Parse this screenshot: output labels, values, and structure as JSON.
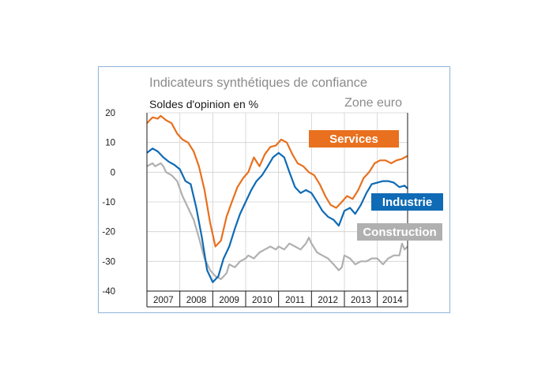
{
  "chart_data": {
    "type": "line",
    "title": "Indicateurs synthétiques de confiance",
    "subtitle": "Soldes d'opinion en %",
    "region": "Zone euro",
    "ylim": [
      -40,
      20
    ],
    "yticks": [
      "20",
      "10",
      "0",
      "-10",
      "-20",
      "-30",
      "-40"
    ],
    "xlim": [
      2007.0,
      2014.92
    ],
    "xticks": [
      "2007",
      "2008",
      "2009",
      "2010",
      "2011",
      "2012",
      "2013",
      "2014"
    ],
    "grid": true,
    "series": [
      {
        "name": "Services",
        "color": "#e8701e",
        "points": [
          [
            2007.0,
            16.5
          ],
          [
            2007.17,
            18.5
          ],
          [
            2007.33,
            18
          ],
          [
            2007.42,
            19
          ],
          [
            2007.58,
            17.5
          ],
          [
            2007.75,
            16.5
          ],
          [
            2007.92,
            13
          ],
          [
            2008.08,
            11
          ],
          [
            2008.25,
            10
          ],
          [
            2008.42,
            7
          ],
          [
            2008.58,
            2
          ],
          [
            2008.75,
            -6
          ],
          [
            2008.92,
            -17
          ],
          [
            2009.08,
            -25
          ],
          [
            2009.25,
            -23
          ],
          [
            2009.42,
            -15
          ],
          [
            2009.58,
            -10
          ],
          [
            2009.75,
            -5
          ],
          [
            2009.92,
            -2
          ],
          [
            2010.08,
            0
          ],
          [
            2010.25,
            5
          ],
          [
            2010.42,
            2
          ],
          [
            2010.58,
            6
          ],
          [
            2010.75,
            8.5
          ],
          [
            2010.92,
            9
          ],
          [
            2011.08,
            11
          ],
          [
            2011.25,
            10
          ],
          [
            2011.42,
            6
          ],
          [
            2011.58,
            3
          ],
          [
            2011.75,
            2
          ],
          [
            2011.92,
            0
          ],
          [
            2012.08,
            -1
          ],
          [
            2012.25,
            -4
          ],
          [
            2012.42,
            -8
          ],
          [
            2012.58,
            -11
          ],
          [
            2012.75,
            -12
          ],
          [
            2012.92,
            -10
          ],
          [
            2013.08,
            -8
          ],
          [
            2013.25,
            -9
          ],
          [
            2013.42,
            -6
          ],
          [
            2013.58,
            -2
          ],
          [
            2013.75,
            0
          ],
          [
            2013.92,
            3
          ],
          [
            2014.08,
            4
          ],
          [
            2014.25,
            4
          ],
          [
            2014.42,
            3
          ],
          [
            2014.58,
            4
          ],
          [
            2014.75,
            4.5
          ],
          [
            2014.92,
            5.5
          ]
        ]
      },
      {
        "name": "Industrie",
        "color": "#0f6bb5",
        "points": [
          [
            2007.0,
            6.5
          ],
          [
            2007.17,
            8
          ],
          [
            2007.33,
            7
          ],
          [
            2007.5,
            5
          ],
          [
            2007.67,
            3.5
          ],
          [
            2007.83,
            2.5
          ],
          [
            2008.0,
            1
          ],
          [
            2008.17,
            -3
          ],
          [
            2008.33,
            -4
          ],
          [
            2008.5,
            -12
          ],
          [
            2008.67,
            -22
          ],
          [
            2008.83,
            -33
          ],
          [
            2009.0,
            -37
          ],
          [
            2009.17,
            -35
          ],
          [
            2009.33,
            -29
          ],
          [
            2009.5,
            -25
          ],
          [
            2009.67,
            -19
          ],
          [
            2009.83,
            -14
          ],
          [
            2010.0,
            -10
          ],
          [
            2010.17,
            -6
          ],
          [
            2010.33,
            -3
          ],
          [
            2010.5,
            -1
          ],
          [
            2010.67,
            2
          ],
          [
            2010.83,
            5
          ],
          [
            2011.0,
            6.5
          ],
          [
            2011.17,
            5
          ],
          [
            2011.33,
            0
          ],
          [
            2011.5,
            -5
          ],
          [
            2011.67,
            -7
          ],
          [
            2011.83,
            -6
          ],
          [
            2012.0,
            -7
          ],
          [
            2012.17,
            -10
          ],
          [
            2012.33,
            -13
          ],
          [
            2012.5,
            -15
          ],
          [
            2012.67,
            -16
          ],
          [
            2012.83,
            -18
          ],
          [
            2013.0,
            -13
          ],
          [
            2013.17,
            -12
          ],
          [
            2013.33,
            -14
          ],
          [
            2013.5,
            -11
          ],
          [
            2013.67,
            -7
          ],
          [
            2013.83,
            -4
          ],
          [
            2014.0,
            -3.5
          ],
          [
            2014.17,
            -3
          ],
          [
            2014.33,
            -3
          ],
          [
            2014.5,
            -3.5
          ],
          [
            2014.67,
            -5
          ],
          [
            2014.83,
            -4.5
          ],
          [
            2014.92,
            -5.5
          ]
        ]
      },
      {
        "name": "Construction",
        "color": "#b0b0b0",
        "points": [
          [
            2007.0,
            2
          ],
          [
            2007.17,
            3
          ],
          [
            2007.25,
            2
          ],
          [
            2007.42,
            3
          ],
          [
            2007.5,
            2
          ],
          [
            2007.58,
            0
          ],
          [
            2007.75,
            -1
          ],
          [
            2007.92,
            -3
          ],
          [
            2008.08,
            -8
          ],
          [
            2008.25,
            -12
          ],
          [
            2008.42,
            -16
          ],
          [
            2008.58,
            -22
          ],
          [
            2008.75,
            -29
          ],
          [
            2008.92,
            -33
          ],
          [
            2009.08,
            -35
          ],
          [
            2009.25,
            -36
          ],
          [
            2009.42,
            -34
          ],
          [
            2009.5,
            -31
          ],
          [
            2009.67,
            -32
          ],
          [
            2009.83,
            -30
          ],
          [
            2010.0,
            -29
          ],
          [
            2010.08,
            -28
          ],
          [
            2010.25,
            -29
          ],
          [
            2010.42,
            -27
          ],
          [
            2010.58,
            -26
          ],
          [
            2010.75,
            -25
          ],
          [
            2010.92,
            -26
          ],
          [
            2011.0,
            -25
          ],
          [
            2011.17,
            -26
          ],
          [
            2011.33,
            -24
          ],
          [
            2011.5,
            -25
          ],
          [
            2011.67,
            -26
          ],
          [
            2011.83,
            -24
          ],
          [
            2011.92,
            -22
          ],
          [
            2012.0,
            -24
          ],
          [
            2012.17,
            -27
          ],
          [
            2012.33,
            -28
          ],
          [
            2012.5,
            -29
          ],
          [
            2012.67,
            -31
          ],
          [
            2012.83,
            -33
          ],
          [
            2012.92,
            -32
          ],
          [
            2013.0,
            -28
          ],
          [
            2013.17,
            -29
          ],
          [
            2013.33,
            -31
          ],
          [
            2013.5,
            -30
          ],
          [
            2013.67,
            -30
          ],
          [
            2013.83,
            -29
          ],
          [
            2014.0,
            -29
          ],
          [
            2014.17,
            -31
          ],
          [
            2014.33,
            -29
          ],
          [
            2014.5,
            -28
          ],
          [
            2014.67,
            -28
          ],
          [
            2014.75,
            -24
          ],
          [
            2014.83,
            -26
          ],
          [
            2014.92,
            -25
          ]
        ]
      }
    ]
  }
}
